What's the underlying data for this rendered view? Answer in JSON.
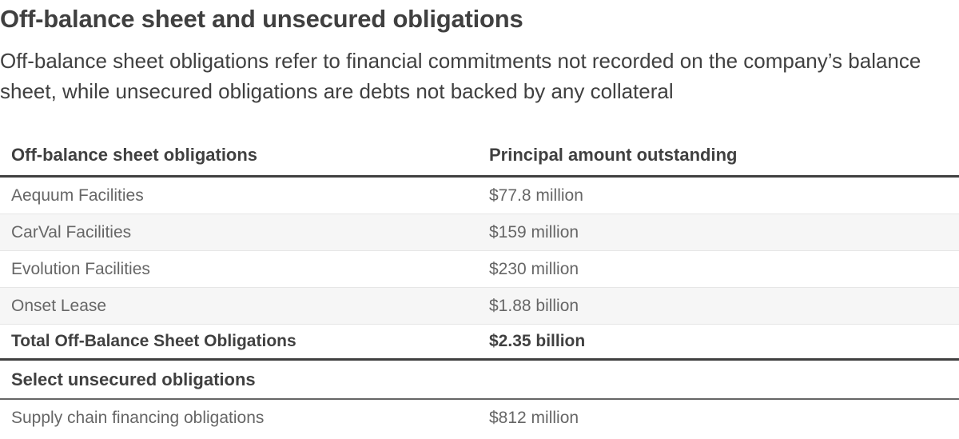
{
  "title": "Off-balance sheet and unsecured obligations",
  "subtitle": "Off-balance sheet obligations refer to financial commitments not recorded on the company’s balance sheet, while unsecured obligations are debts not backed by any collateral",
  "table": {
    "headers": [
      "Off-balance sheet obligations",
      "Principal amount outstanding"
    ],
    "rows": [
      {
        "name": "Aequum Facilities",
        "amount": "$77.8 million"
      },
      {
        "name": "CarVal Facilities",
        "amount": "$159 million"
      },
      {
        "name": "Evolution Facilities",
        "amount": "$230 million"
      },
      {
        "name": "Onset Lease",
        "amount": "$1.88 billion"
      }
    ],
    "total": {
      "name": "Total Off-Balance Sheet Obligations",
      "amount": "$2.35 billion"
    },
    "section_title": "Select unsecured obligations",
    "section_rows": [
      {
        "name": "Supply chain financing obligations",
        "amount": "$812 million"
      }
    ]
  }
}
